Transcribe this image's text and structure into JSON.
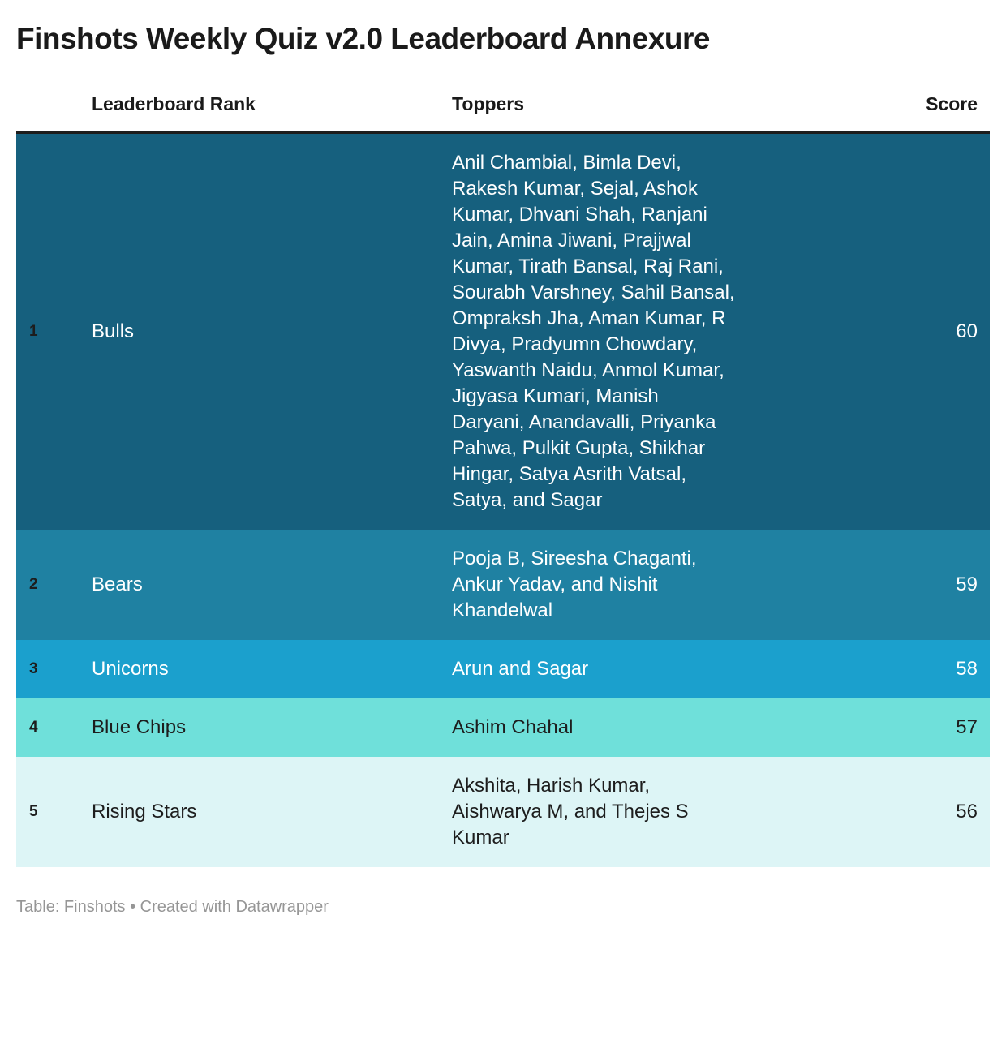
{
  "title": "Finshots Weekly Quiz v2.0 Leaderboard Annexure",
  "table": {
    "headers": {
      "rank": "Leaderboard Rank",
      "toppers": "Toppers",
      "score": "Score"
    },
    "rows": [
      {
        "rank": "1",
        "team": "Bulls",
        "toppers": "Anil Chambial, Bimla Devi, Rakesh Kumar, Sejal, Ashok Kumar, Dhvani Shah, Ranjani Jain, Amina Jiwani, Prajjwal Kumar, Tirath Bansal, Raj Rani, Sourabh Varshney, Sahil Bansal, Ompraksh Jha, Aman Kumar, R Divya, Pradyumn Chowdary, Yaswanth Naidu, Anmol Kumar, Jigyasa Kumari, Manish Daryani, Anandavalli, Priyanka Pahwa, Pulkit Gupta, Shikhar Hingar, Satya Asrith Vatsal, Satya, and Sagar",
        "score": "60",
        "row_color": "#16607E",
        "text_color": "#ffffff"
      },
      {
        "rank": "2",
        "team": "Bears",
        "toppers": "Pooja B, Sireesha Chaganti, Ankur Yadav, and Nishit Khandelwal",
        "score": "59",
        "row_color": "#1F81A2",
        "text_color": "#ffffff"
      },
      {
        "rank": "3",
        "team": "Unicorns",
        "toppers": "Arun and Sagar",
        "score": "58",
        "row_color": "#1BA0CD",
        "text_color": "#ffffff"
      },
      {
        "rank": "4",
        "team": "Blue Chips",
        "toppers": "Ashim Chahal",
        "score": "57",
        "row_color": "#6FE0DA",
        "text_color": "#1d1d1d"
      },
      {
        "rank": "5",
        "team": "Rising Stars",
        "toppers": "Akshita, Harish Kumar, Aishwarya M, and Thejes S Kumar",
        "score": "56",
        "row_color": "#DDF5F6",
        "text_color": "#1d1d1d"
      }
    ]
  },
  "footer": {
    "text": "Table: Finshots • Created with Datawrapper"
  },
  "chart_data": {
    "type": "table",
    "title": "Finshots Weekly Quiz v2.0 Leaderboard Annexure",
    "columns": [
      "Leaderboard Rank",
      "Toppers",
      "Score"
    ],
    "rows": [
      {
        "rank": 1,
        "team": "Bulls",
        "toppers": "Anil Chambial, Bimla Devi, Rakesh Kumar, Sejal, Ashok Kumar, Dhvani Shah, Ranjani Jain, Amina Jiwani, Prajjwal Kumar, Tirath Bansal, Raj Rani, Sourabh Varshney, Sahil Bansal, Ompraksh Jha, Aman Kumar, R Divya, Pradyumn Chowdary, Yaswanth Naidu, Anmol Kumar, Jigyasa Kumari, Manish Daryani, Anandavalli, Priyanka Pahwa, Pulkit Gupta, Shikhar Hingar, Satya Asrith Vatsal, Satya, and Sagar",
        "score": 60
      },
      {
        "rank": 2,
        "team": "Bears",
        "toppers": "Pooja B, Sireesha Chaganti, Ankur Yadav, and Nishit Khandelwal",
        "score": 59
      },
      {
        "rank": 3,
        "team": "Unicorns",
        "toppers": "Arun and Sagar",
        "score": 58
      },
      {
        "rank": 4,
        "team": "Blue Chips",
        "toppers": "Ashim Chahal",
        "score": 57
      },
      {
        "rank": 5,
        "team": "Rising Stars",
        "toppers": "Akshita, Harish Kumar, Aishwarya M, and Thejes S Kumar",
        "score": 56
      }
    ],
    "row_colors": [
      "#16607E",
      "#1F81A2",
      "#1BA0CD",
      "#6FE0DA",
      "#DDF5F6"
    ],
    "source_note": "Table: Finshots • Created with Datawrapper"
  }
}
